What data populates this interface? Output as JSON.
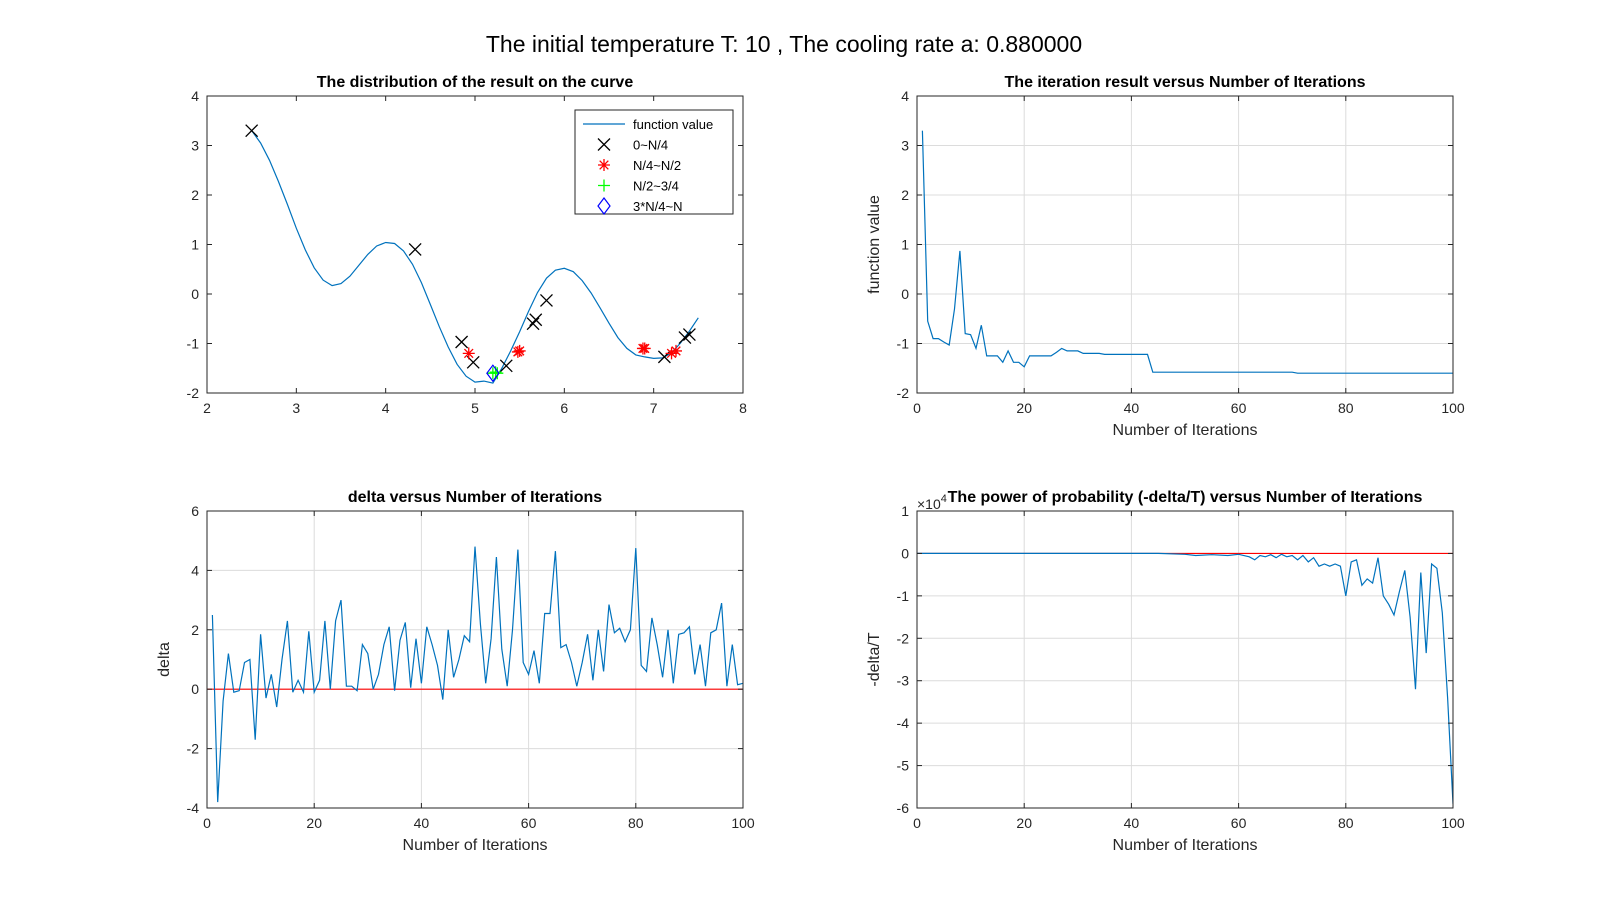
{
  "figure_title": "The initial temperature T: 10  , The cooling rate a: 0.880000",
  "colors": {
    "line": "#0072BD",
    "zero_line": "#FF0000",
    "marker_q1": "#000000",
    "marker_q2": "#FF0000",
    "marker_q3": "#00FF00",
    "marker_q4": "#0000FF"
  },
  "chart_data": [
    {
      "id": "curve",
      "type": "line",
      "title": "The distribution of the result on the curve",
      "xlabel": "",
      "ylabel": "",
      "xlim": [
        2,
        8
      ],
      "ylim": [
        -2,
        4
      ],
      "xticks": [
        2,
        3,
        4,
        5,
        6,
        7,
        8
      ],
      "yticks": [
        -2,
        -1,
        0,
        1,
        2,
        3,
        4
      ],
      "grid": false,
      "legend_position": "top-right",
      "legend": [
        "function value",
        "0~N/4",
        "N/4~N/2",
        "N/2~3/4",
        "3*N/4~N"
      ],
      "curve": {
        "name": "function value",
        "x": [
          2.5,
          2.6,
          2.7,
          2.8,
          2.9,
          3.0,
          3.1,
          3.2,
          3.3,
          3.4,
          3.5,
          3.6,
          3.7,
          3.8,
          3.9,
          4.0,
          4.1,
          4.2,
          4.3,
          4.4,
          4.5,
          4.6,
          4.7,
          4.8,
          4.9,
          5.0,
          5.1,
          5.2,
          5.3,
          5.4,
          5.5,
          5.6,
          5.7,
          5.8,
          5.9,
          6.0,
          6.1,
          6.2,
          6.3,
          6.4,
          6.5,
          6.6,
          6.7,
          6.8,
          6.9,
          7.0,
          7.1,
          7.2,
          7.3,
          7.4,
          7.5
        ],
        "y": [
          3.3,
          3.05,
          2.7,
          2.27,
          1.81,
          1.33,
          0.89,
          0.53,
          0.28,
          0.17,
          0.21,
          0.36,
          0.58,
          0.8,
          0.97,
          1.04,
          1.02,
          0.87,
          0.6,
          0.23,
          -0.21,
          -0.66,
          -1.07,
          -1.42,
          -1.66,
          -1.78,
          -1.76,
          -1.8,
          -1.5,
          -1.15,
          -0.76,
          -0.35,
          0.03,
          0.32,
          0.48,
          0.52,
          0.45,
          0.27,
          0.02,
          -0.28,
          -0.59,
          -0.88,
          -1.1,
          -1.23,
          -1.27,
          -1.3,
          -1.29,
          -1.19,
          -0.99,
          -0.75,
          -0.48
        ]
      },
      "markers": [
        {
          "group": "0~N/4",
          "symbol": "x",
          "points": [
            [
              2.5,
              3.3
            ],
            [
              4.33,
              0.9
            ],
            [
              4.85,
              -0.97
            ],
            [
              4.98,
              -1.38
            ],
            [
              5.35,
              -1.45
            ],
            [
              5.65,
              -0.6
            ],
            [
              5.68,
              -0.52
            ],
            [
              5.8,
              -0.13
            ],
            [
              7.12,
              -1.27
            ],
            [
              7.35,
              -0.88
            ],
            [
              7.4,
              -0.82
            ]
          ]
        },
        {
          "group": "N/4~N/2",
          "symbol": "*",
          "points": [
            [
              4.93,
              -1.2
            ],
            [
              5.48,
              -1.17
            ],
            [
              5.5,
              -1.15
            ],
            [
              6.88,
              -1.1
            ],
            [
              6.9,
              -1.1
            ],
            [
              7.2,
              -1.2
            ],
            [
              7.25,
              -1.15
            ]
          ]
        },
        {
          "group": "N/2~3/4",
          "symbol": "+",
          "points": [
            [
              5.2,
              -1.6
            ],
            [
              5.23,
              -1.58
            ],
            [
              5.25,
              -1.6
            ]
          ]
        },
        {
          "group": "3*N/4~N",
          "symbol": "diamond",
          "points": [
            [
              5.2,
              -1.6
            ]
          ]
        }
      ]
    },
    {
      "id": "iter",
      "type": "line",
      "title": "The iteration result versus Number of Iterations",
      "xlabel": "Number of Iterations",
      "ylabel": "function value",
      "xlim": [
        0,
        100
      ],
      "ylim": [
        -2,
        4
      ],
      "xticks": [
        0,
        20,
        40,
        60,
        80,
        100
      ],
      "yticks": [
        -2,
        -1,
        0,
        1,
        2,
        3,
        4
      ],
      "grid": true,
      "series": [
        {
          "name": "function value",
          "x": [
            1,
            2,
            3,
            4,
            5,
            6,
            7,
            8,
            9,
            10,
            11,
            12,
            13,
            14,
            15,
            16,
            17,
            18,
            19,
            20,
            21,
            22,
            23,
            24,
            25,
            26,
            27,
            28,
            29,
            30,
            31,
            32,
            33,
            34,
            35,
            36,
            37,
            38,
            39,
            40,
            41,
            42,
            43,
            44,
            45,
            50,
            60,
            70,
            71,
            80,
            90,
            100
          ],
          "y": [
            3.3,
            -0.55,
            -0.9,
            -0.9,
            -0.97,
            -1.03,
            -0.3,
            0.87,
            -0.8,
            -0.82,
            -1.1,
            -0.63,
            -1.25,
            -1.25,
            -1.25,
            -1.38,
            -1.15,
            -1.38,
            -1.38,
            -1.47,
            -1.25,
            -1.25,
            -1.25,
            -1.25,
            -1.25,
            -1.18,
            -1.1,
            -1.15,
            -1.15,
            -1.15,
            -1.2,
            -1.2,
            -1.2,
            -1.2,
            -1.22,
            -1.22,
            -1.22,
            -1.22,
            -1.22,
            -1.22,
            -1.22,
            -1.22,
            -1.22,
            -1.58,
            -1.58,
            -1.58,
            -1.58,
            -1.58,
            -1.6,
            -1.6,
            -1.6,
            -1.6
          ]
        }
      ]
    },
    {
      "id": "delta",
      "type": "line",
      "title": "delta versus Number of Iterations",
      "xlabel": "Number of Iterations",
      "ylabel": "delta",
      "xlim": [
        0,
        100
      ],
      "ylim": [
        -4,
        6
      ],
      "xticks": [
        0,
        20,
        40,
        60,
        80,
        100
      ],
      "yticks": [
        -4,
        -2,
        0,
        2,
        4,
        6
      ],
      "grid": true,
      "reference_line": 0,
      "series": [
        {
          "name": "delta",
          "x": [
            1,
            2,
            3,
            4,
            5,
            6,
            7,
            8,
            9,
            10,
            11,
            12,
            13,
            14,
            15,
            16,
            17,
            18,
            19,
            20,
            21,
            22,
            23,
            24,
            25,
            26,
            27,
            28,
            29,
            30,
            31,
            32,
            33,
            34,
            35,
            36,
            37,
            38,
            39,
            40,
            41,
            42,
            43,
            44,
            45,
            46,
            47,
            48,
            49,
            50,
            51,
            52,
            53,
            54,
            55,
            56,
            57,
            58,
            59,
            60,
            61,
            62,
            63,
            64,
            65,
            66,
            67,
            68,
            69,
            70,
            71,
            72,
            73,
            74,
            75,
            76,
            77,
            78,
            79,
            80,
            81,
            82,
            83,
            84,
            85,
            86,
            87,
            88,
            89,
            90,
            91,
            92,
            93,
            94,
            95,
            96,
            97,
            98,
            99,
            100
          ],
          "y": [
            2.5,
            -3.8,
            -0.4,
            1.2,
            -0.1,
            -0.05,
            0.9,
            1.0,
            -1.7,
            1.85,
            -0.3,
            0.5,
            -0.6,
            1.0,
            2.3,
            -0.1,
            0.3,
            -0.1,
            1.95,
            -0.1,
            0.3,
            2.3,
            0.0,
            2.3,
            3.0,
            0.1,
            0.1,
            -0.05,
            1.5,
            1.2,
            0.0,
            0.5,
            1.5,
            2.1,
            -0.05,
            1.65,
            2.25,
            0.05,
            1.7,
            0.2,
            2.1,
            1.5,
            0.8,
            -0.35,
            2.0,
            0.4,
            1.0,
            1.8,
            1.6,
            4.8,
            2.2,
            0.2,
            1.7,
            4.45,
            1.35,
            0.1,
            2.0,
            4.7,
            0.9,
            0.5,
            1.3,
            0.2,
            2.55,
            2.55,
            4.65,
            1.4,
            1.5,
            0.9,
            0.1,
            0.9,
            1.85,
            0.3,
            2.0,
            0.6,
            2.85,
            1.9,
            2.05,
            1.6,
            2.0,
            4.75,
            0.8,
            0.6,
            2.4,
            1.5,
            0.4,
            2.0,
            0.2,
            1.85,
            1.9,
            2.1,
            0.5,
            1.5,
            0.1,
            1.9,
            2.0,
            2.9,
            0.1,
            1.5,
            0.15,
            0.2
          ]
        }
      ]
    },
    {
      "id": "power",
      "type": "line",
      "title": "The power of  probability  (-delta/T) versus Number of Iterations",
      "xlabel": "Number of Iterations",
      "ylabel": "-delta/T",
      "exponent_label": "×10",
      "exponent_value": "4",
      "xlim": [
        0,
        100
      ],
      "ylim": [
        -6,
        1
      ],
      "xticks": [
        0,
        20,
        40,
        60,
        80,
        100
      ],
      "yticks": [
        -6,
        -5,
        -4,
        -3,
        -2,
        -1,
        0,
        1
      ],
      "grid": true,
      "reference_line": 0,
      "series": [
        {
          "name": "-delta/T",
          "x": [
            0,
            45,
            50,
            52,
            55,
            58,
            60,
            62,
            63,
            64,
            65,
            66,
            67,
            68,
            69,
            70,
            71,
            72,
            73,
            74,
            75,
            76,
            77,
            78,
            79,
            80,
            81,
            82,
            83,
            84,
            85,
            86,
            87,
            88,
            89,
            90,
            91,
            92,
            93,
            94,
            95,
            96,
            97,
            98,
            99,
            100
          ],
          "y": [
            0,
            0,
            -0.02,
            -0.05,
            -0.03,
            -0.05,
            -0.02,
            -0.08,
            -0.15,
            -0.05,
            -0.08,
            -0.03,
            -0.1,
            -0.02,
            -0.08,
            -0.05,
            -0.15,
            -0.05,
            -0.2,
            -0.1,
            -0.3,
            -0.25,
            -0.3,
            -0.25,
            -0.3,
            -1.0,
            -0.2,
            -0.15,
            -0.75,
            -0.6,
            -0.7,
            -0.1,
            -1.0,
            -1.2,
            -1.45,
            -0.9,
            -0.4,
            -1.5,
            -3.2,
            -0.45,
            -2.35,
            -0.25,
            -0.35,
            -1.4,
            -3.4,
            -5.9
          ]
        }
      ]
    }
  ]
}
